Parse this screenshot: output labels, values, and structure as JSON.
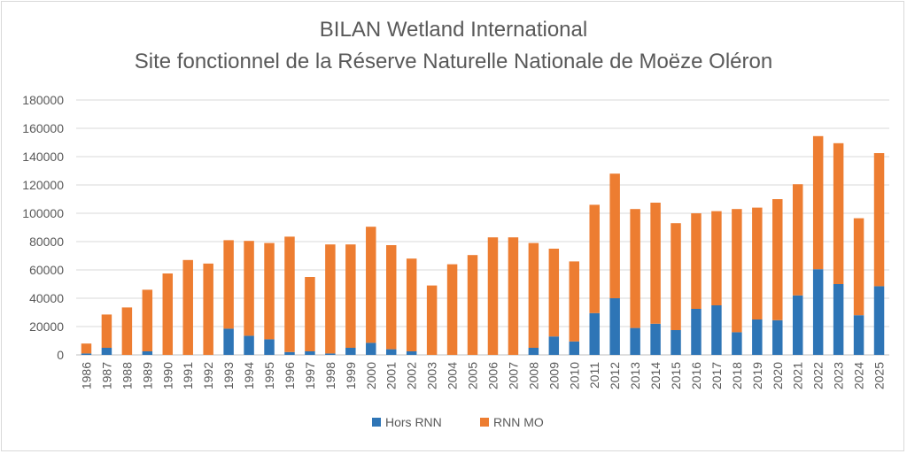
{
  "chart_data": {
    "type": "bar",
    "stacked": true,
    "title": "BILAN Wetland International",
    "subtitle": "Site fonctionnel de la Réserve Naturelle Nationale de Moëze Oléron",
    "xlabel": "",
    "ylabel": "",
    "ylim": [
      0,
      180000
    ],
    "yticks": [
      0,
      20000,
      40000,
      60000,
      80000,
      100000,
      120000,
      140000,
      160000,
      180000
    ],
    "grid": true,
    "legend_position": "bottom",
    "categories": [
      "1986",
      "1987",
      "1988",
      "1989",
      "1990",
      "1991",
      "1992",
      "1993",
      "1994",
      "1995",
      "1996",
      "1997",
      "1998",
      "1999",
      "2000",
      "2001",
      "2002",
      "2003",
      "2004",
      "2005",
      "2006",
      "2007",
      "2008",
      "2009",
      "2010",
      "2011",
      "2012",
      "2013",
      "2014",
      "2015",
      "2016",
      "2017",
      "2018",
      "2019",
      "2020",
      "2021",
      "2022",
      "2023",
      "2024",
      "2025"
    ],
    "series": [
      {
        "name": "Hors RNN",
        "color": "#2e75b6",
        "values": [
          1000,
          5000,
          0,
          2500,
          0,
          0,
          0,
          18500,
          13500,
          11000,
          2000,
          2500,
          1000,
          5000,
          8500,
          4000,
          2500,
          0,
          0,
          0,
          0,
          0,
          5000,
          13000,
          9500,
          29500,
          40000,
          19000,
          22000,
          17500,
          32500,
          35000,
          16000,
          25000,
          24500,
          42000,
          60500,
          50000,
          28000,
          48500
        ]
      },
      {
        "name": "RNN MO",
        "color": "#ed7d31",
        "values": [
          7000,
          23500,
          33500,
          43500,
          57500,
          67000,
          64500,
          62500,
          67000,
          68000,
          81500,
          52500,
          77000,
          73000,
          82000,
          73500,
          65500,
          49000,
          64000,
          70500,
          83000,
          83000,
          74000,
          62000,
          56500,
          76500,
          88000,
          84000,
          85500,
          75500,
          67500,
          66500,
          87000,
          79000,
          85500,
          78500,
          94000,
          99500,
          68500,
          94000
        ]
      }
    ]
  }
}
